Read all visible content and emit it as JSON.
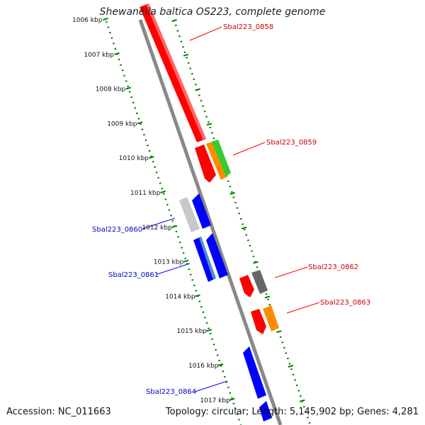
{
  "title": "Shewanella baltica OS223, complete genome",
  "accession_text": "Accession: NC_011663",
  "summary_text": "Topology: circular; Length: 5,145,902 bp; Genes: 4,281",
  "colors": {
    "red": "#ff0000",
    "blue": "#0000ff",
    "orange": "#ff8c00",
    "green": "#33cc33",
    "gray": "#666666",
    "light_gray": "#c8c8c8",
    "steel_blue": "#4f8fc8",
    "tick_green": "#008000",
    "backbone": "#808080"
  },
  "ticks": [
    {
      "label": "1006 kbp"
    },
    {
      "label": "1007 kbp"
    },
    {
      "label": "1008 kbp"
    },
    {
      "label": "1009 kbp"
    },
    {
      "label": "1010 kbp"
    },
    {
      "label": "1011 kbp"
    },
    {
      "label": "1012 kbp"
    },
    {
      "label": "1013 kbp"
    },
    {
      "label": "1014 kbp"
    },
    {
      "label": "1015 kbp"
    },
    {
      "label": "1016 kbp"
    },
    {
      "label": "1017 kbp"
    }
  ],
  "gene_labels": [
    {
      "text": "Sbal223_0858",
      "strand": "forward"
    },
    {
      "text": "Sbal223_0859",
      "strand": "forward"
    },
    {
      "text": "Sbal223_0860",
      "strand": "reverse"
    },
    {
      "text": "Sbal223_0861",
      "strand": "reverse"
    },
    {
      "text": "Sbal223_0862",
      "strand": "forward"
    },
    {
      "text": "Sbal223_0863",
      "strand": "forward"
    },
    {
      "text": "Sbal223_0864",
      "strand": "reverse"
    }
  ]
}
